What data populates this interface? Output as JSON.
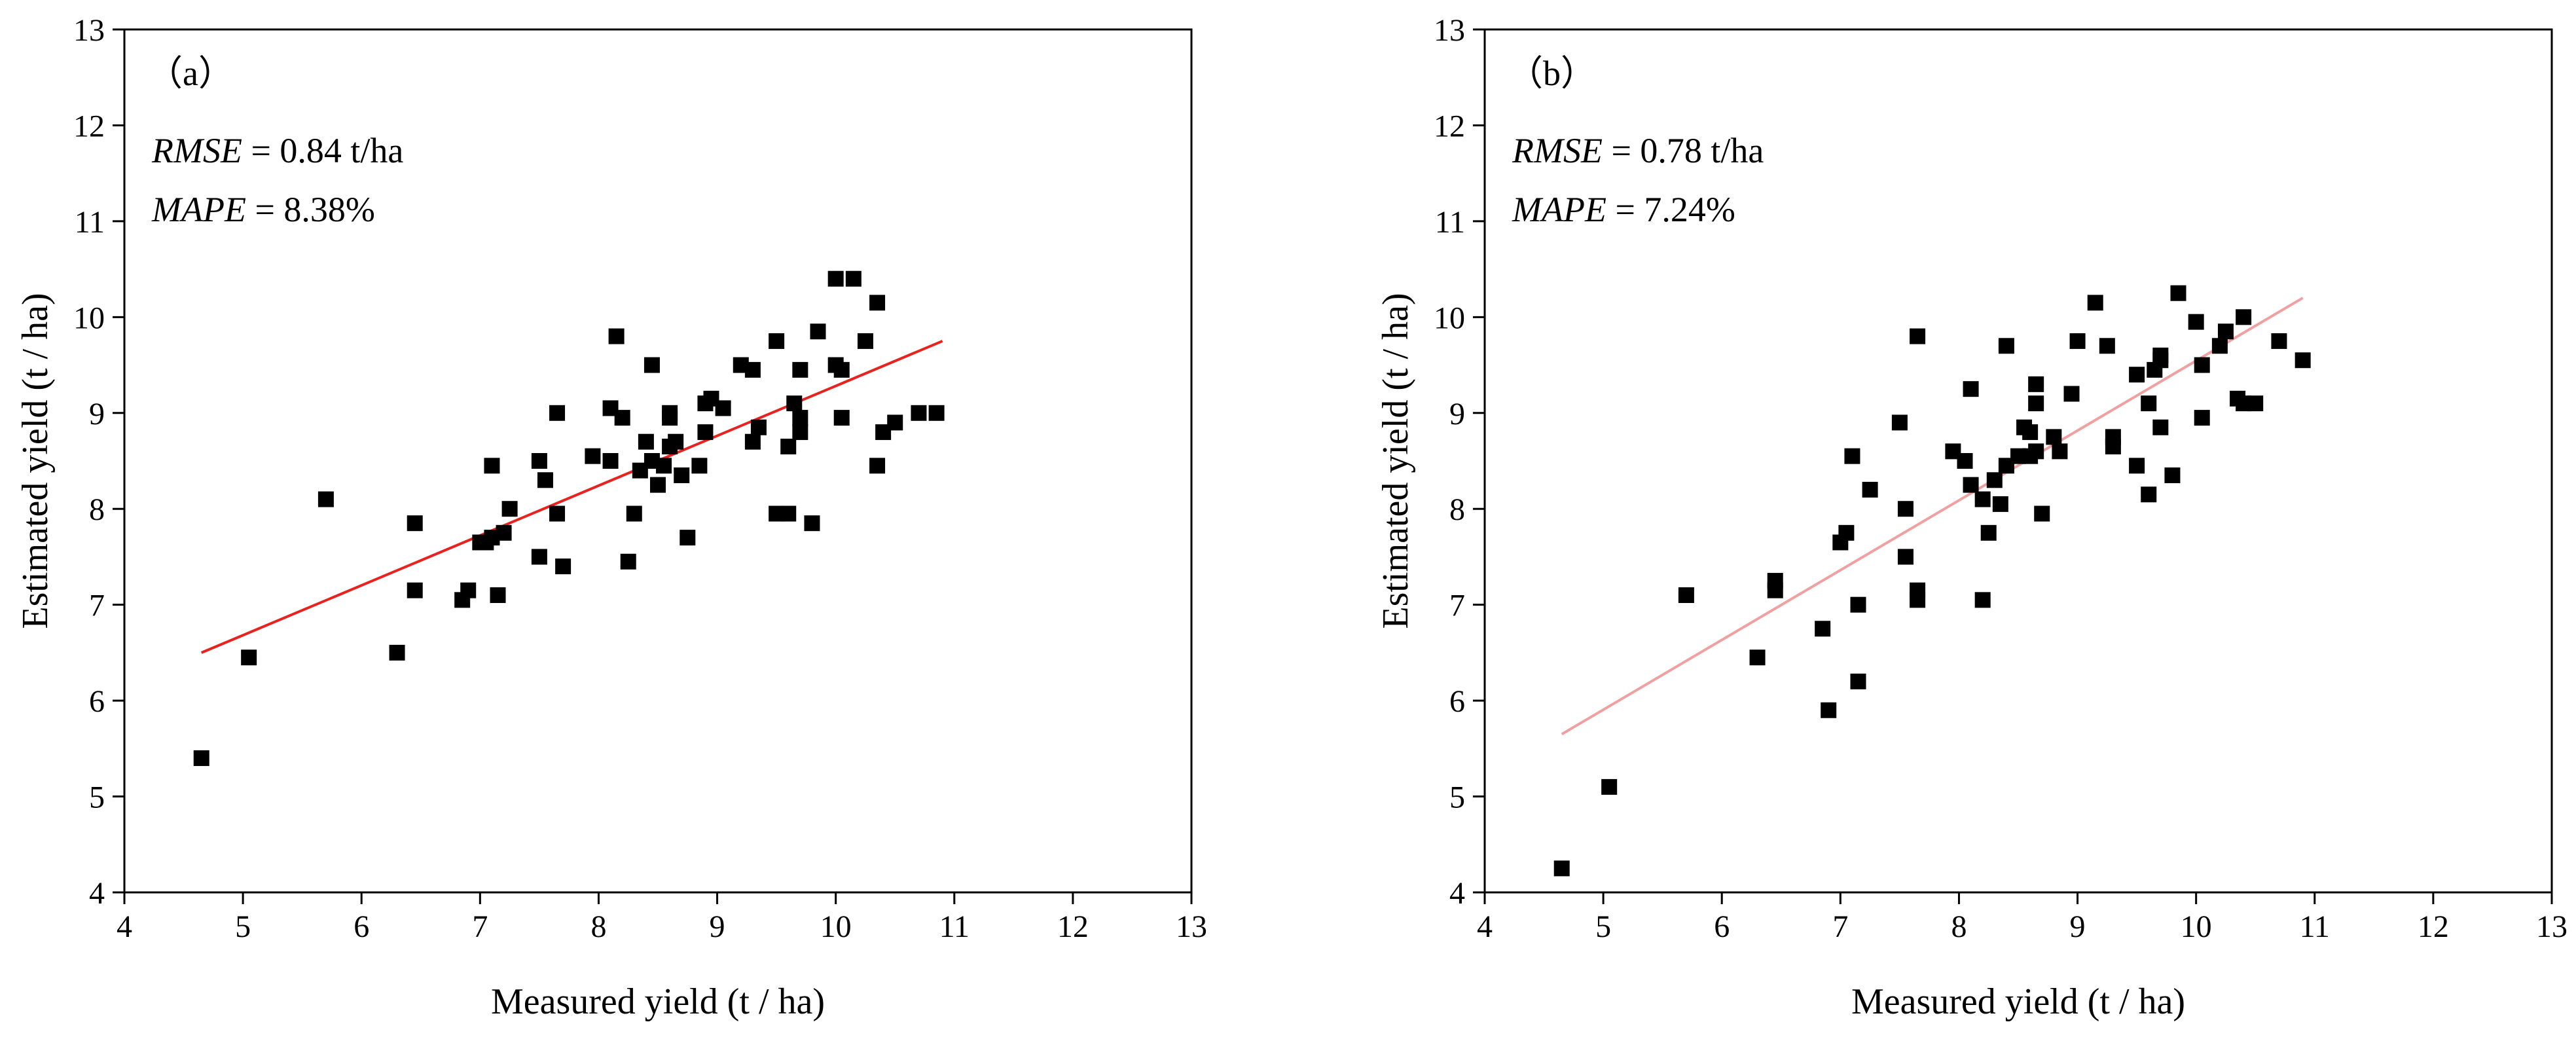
{
  "chart_data": [
    {
      "type": "scatter",
      "panel_label": "（a）",
      "xlabel": "Measured yield (t / ha)",
      "ylabel": "Estimated yield (t / ha)",
      "xlim": [
        4,
        13
      ],
      "ylim": [
        4,
        13
      ],
      "xticks": [
        4,
        5,
        6,
        7,
        8,
        9,
        10,
        11,
        12,
        13
      ],
      "yticks": [
        4,
        5,
        6,
        7,
        8,
        9,
        10,
        11,
        12,
        13
      ],
      "grid": false,
      "annotations": [
        {
          "name": "RMSE",
          "value": " = 0.84 t/ha"
        },
        {
          "name": "MAPE",
          "value": " = 8.38%"
        }
      ],
      "fit_line": {
        "x": [
          4.65,
          10.9
        ],
        "y": [
          6.5,
          9.75
        ],
        "color": "#e8221f"
      },
      "points": [
        [
          4.65,
          5.4
        ],
        [
          5.05,
          6.45
        ],
        [
          5.7,
          8.1
        ],
        [
          6.3,
          6.5
        ],
        [
          6.45,
          7.85
        ],
        [
          6.45,
          7.15
        ],
        [
          6.85,
          7.05
        ],
        [
          6.9,
          7.15
        ],
        [
          7.0,
          7.65
        ],
        [
          7.05,
          7.65
        ],
        [
          7.1,
          8.45
        ],
        [
          7.1,
          7.7
        ],
        [
          7.15,
          7.1
        ],
        [
          7.2,
          7.75
        ],
        [
          7.25,
          8.0
        ],
        [
          7.5,
          8.5
        ],
        [
          7.5,
          7.5
        ],
        [
          7.55,
          8.3
        ],
        [
          7.65,
          9.0
        ],
        [
          7.65,
          7.95
        ],
        [
          7.7,
          7.4
        ],
        [
          7.95,
          8.55
        ],
        [
          8.1,
          9.05
        ],
        [
          8.1,
          8.5
        ],
        [
          8.15,
          9.8
        ],
        [
          8.2,
          8.95
        ],
        [
          8.25,
          7.45
        ],
        [
          8.3,
          7.95
        ],
        [
          8.35,
          8.4
        ],
        [
          8.4,
          8.7
        ],
        [
          8.45,
          9.5
        ],
        [
          8.45,
          8.5
        ],
        [
          8.5,
          8.25
        ],
        [
          8.55,
          8.45
        ],
        [
          8.6,
          9.0
        ],
        [
          8.6,
          8.95
        ],
        [
          8.6,
          8.65
        ],
        [
          8.65,
          8.7
        ],
        [
          8.7,
          8.35
        ],
        [
          8.75,
          7.7
        ],
        [
          8.85,
          8.45
        ],
        [
          8.9,
          9.1
        ],
        [
          8.9,
          8.8
        ],
        [
          8.95,
          9.15
        ],
        [
          9.05,
          9.05
        ],
        [
          9.2,
          9.5
        ],
        [
          9.3,
          9.45
        ],
        [
          9.3,
          8.7
        ],
        [
          9.35,
          8.85
        ],
        [
          9.5,
          9.75
        ],
        [
          9.5,
          7.95
        ],
        [
          9.6,
          8.65
        ],
        [
          9.6,
          7.95
        ],
        [
          9.65,
          9.1
        ],
        [
          9.7,
          9.45
        ],
        [
          9.7,
          8.95
        ],
        [
          9.7,
          8.8
        ],
        [
          9.8,
          7.85
        ],
        [
          9.85,
          9.85
        ],
        [
          10.0,
          10.4
        ],
        [
          10.0,
          9.5
        ],
        [
          10.05,
          9.45
        ],
        [
          10.05,
          8.95
        ],
        [
          10.15,
          10.4
        ],
        [
          10.25,
          9.75
        ],
        [
          10.35,
          10.15
        ],
        [
          10.35,
          8.45
        ],
        [
          10.4,
          8.8
        ],
        [
          10.5,
          8.9
        ],
        [
          10.7,
          9.0
        ],
        [
          10.85,
          9.0
        ]
      ]
    },
    {
      "type": "scatter",
      "panel_label": "（b）",
      "xlabel": "Measured yield (t / ha)",
      "ylabel": "Estimated yield (t / ha)",
      "xlim": [
        4,
        13
      ],
      "ylim": [
        4,
        13
      ],
      "xticks": [
        4,
        5,
        6,
        7,
        8,
        9,
        10,
        11,
        12,
        13
      ],
      "yticks": [
        4,
        5,
        6,
        7,
        8,
        9,
        10,
        11,
        12,
        13
      ],
      "grid": false,
      "annotations": [
        {
          "name": "RMSE",
          "value": " = 0.78 t/ha"
        },
        {
          "name": "MAPE",
          "value": " = 7.24%"
        }
      ],
      "fit_line": {
        "x": [
          4.65,
          10.9
        ],
        "y": [
          5.65,
          10.2
        ],
        "color": "#f0a0a0"
      },
      "points": [
        [
          4.65,
          4.25
        ],
        [
          5.05,
          5.1
        ],
        [
          5.7,
          7.1
        ],
        [
          6.3,
          6.45
        ],
        [
          6.45,
          7.25
        ],
        [
          6.45,
          7.15
        ],
        [
          6.85,
          6.75
        ],
        [
          6.9,
          5.9
        ],
        [
          7.0,
          7.65
        ],
        [
          7.05,
          7.75
        ],
        [
          7.1,
          8.55
        ],
        [
          7.15,
          7.0
        ],
        [
          7.15,
          6.2
        ],
        [
          7.25,
          8.2
        ],
        [
          7.5,
          8.9
        ],
        [
          7.55,
          8.0
        ],
        [
          7.55,
          7.5
        ],
        [
          7.65,
          9.8
        ],
        [
          7.65,
          7.15
        ],
        [
          7.65,
          7.05
        ],
        [
          7.95,
          8.6
        ],
        [
          8.05,
          8.5
        ],
        [
          8.1,
          9.25
        ],
        [
          8.1,
          8.25
        ],
        [
          8.2,
          8.1
        ],
        [
          8.2,
          7.05
        ],
        [
          8.25,
          7.75
        ],
        [
          8.3,
          8.3
        ],
        [
          8.35,
          8.05
        ],
        [
          8.4,
          9.7
        ],
        [
          8.4,
          8.45
        ],
        [
          8.5,
          8.55
        ],
        [
          8.55,
          8.85
        ],
        [
          8.6,
          8.8
        ],
        [
          8.6,
          8.55
        ],
        [
          8.65,
          9.3
        ],
        [
          8.65,
          9.1
        ],
        [
          8.65,
          8.6
        ],
        [
          8.7,
          7.95
        ],
        [
          8.8,
          8.75
        ],
        [
          8.85,
          8.6
        ],
        [
          8.95,
          9.2
        ],
        [
          9.0,
          9.75
        ],
        [
          9.15,
          10.15
        ],
        [
          9.25,
          9.7
        ],
        [
          9.3,
          8.75
        ],
        [
          9.3,
          8.65
        ],
        [
          9.5,
          9.4
        ],
        [
          9.5,
          8.45
        ],
        [
          9.6,
          9.1
        ],
        [
          9.6,
          8.15
        ],
        [
          9.65,
          9.45
        ],
        [
          9.7,
          9.6
        ],
        [
          9.7,
          9.55
        ],
        [
          9.7,
          8.85
        ],
        [
          9.8,
          8.35
        ],
        [
          9.85,
          10.25
        ],
        [
          10.0,
          9.95
        ],
        [
          10.05,
          9.5
        ],
        [
          10.05,
          8.95
        ],
        [
          10.2,
          9.7
        ],
        [
          10.25,
          9.85
        ],
        [
          10.35,
          9.15
        ],
        [
          10.4,
          10.0
        ],
        [
          10.4,
          9.1
        ],
        [
          10.5,
          9.1
        ],
        [
          10.7,
          9.75
        ],
        [
          10.9,
          9.55
        ]
      ]
    }
  ]
}
